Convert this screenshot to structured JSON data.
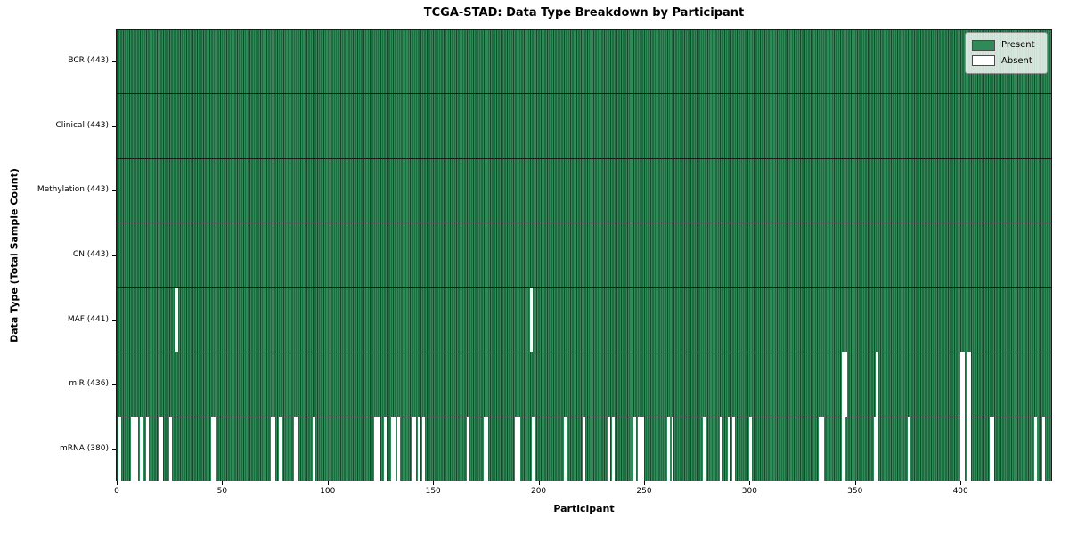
{
  "chart_data": {
    "type": "heatmap",
    "title": "TCGA-STAD: Data Type Breakdown by Participant",
    "xlabel": "Participant",
    "ylabel": "Data Type (Total Sample Count)",
    "n_participants": 443,
    "x_ticks": [
      0,
      50,
      100,
      150,
      200,
      250,
      300,
      350,
      400
    ],
    "grid": "row-boundaries-only",
    "legend": {
      "position": "upper-right",
      "entries": [
        {
          "label": "Present",
          "color": "#2e8b57"
        },
        {
          "label": "Absent",
          "color": "#ffffff"
        }
      ]
    },
    "colors": {
      "present": "#2e8b57",
      "bar_edge": "#16482b",
      "absent": "#ffffff",
      "boundary": "#1a1a1a"
    },
    "rows": [
      {
        "label": "BCR (443)",
        "data_type": "BCR",
        "total": 443,
        "absent_participants": []
      },
      {
        "label": "Clinical (443)",
        "data_type": "Clinical",
        "total": 443,
        "absent_participants": []
      },
      {
        "label": "Methylation (443)",
        "data_type": "Methylation",
        "total": 443,
        "absent_participants": []
      },
      {
        "label": "CN (443)",
        "data_type": "CN",
        "total": 443,
        "absent_participants": []
      },
      {
        "label": "MAF (441)",
        "data_type": "MAF",
        "total": 441,
        "absent_participants": [
          28,
          196
        ]
      },
      {
        "label": "miR (436)",
        "data_type": "miR",
        "total": 436,
        "absent_participants": [
          344,
          345,
          360,
          400,
          401,
          403,
          404
        ]
      },
      {
        "label": "mRNA (380)",
        "data_type": "mRNA",
        "total": 380,
        "absent_participants": [
          1,
          7,
          8,
          9,
          11,
          14,
          20,
          21,
          25,
          45,
          46,
          73,
          74,
          77,
          84,
          85,
          93,
          122,
          123,
          124,
          127,
          130,
          131,
          133,
          140,
          141,
          143,
          145,
          166,
          174,
          175,
          189,
          190,
          197,
          212,
          221,
          233,
          235,
          245,
          247,
          248,
          249,
          261,
          263,
          278,
          286,
          290,
          292,
          300,
          333,
          334,
          344,
          359,
          360,
          375,
          400,
          401,
          403,
          404,
          414,
          415,
          435,
          439
        ]
      }
    ]
  }
}
